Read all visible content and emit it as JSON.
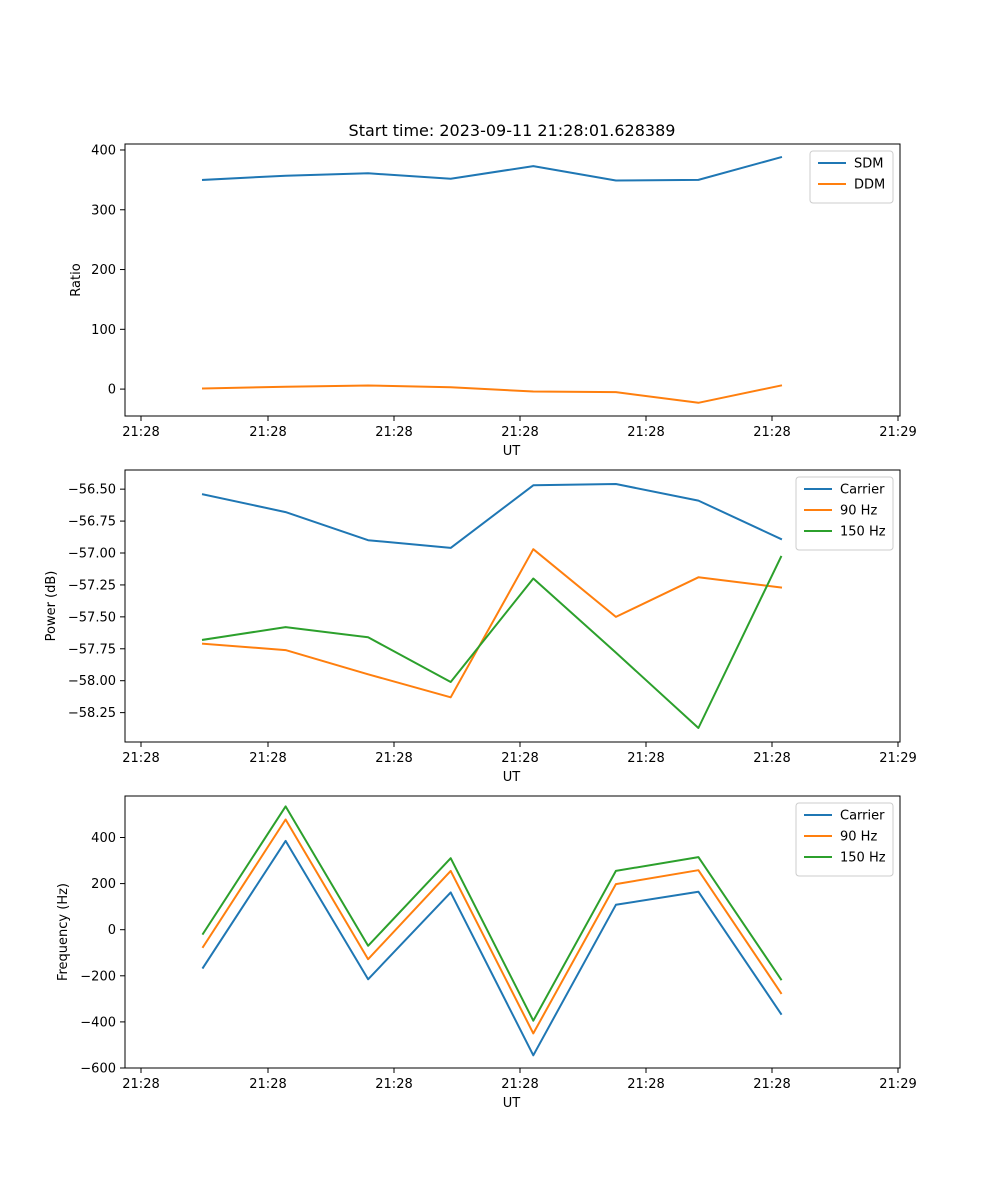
{
  "figure": {
    "title": "Start time: 2023-09-11 21:28:01.628389"
  },
  "chart_data": [
    {
      "type": "line",
      "xlabel": "UT",
      "ylabel": "Ratio",
      "x_tick_labels": [
        "21:28",
        "21:28",
        "21:28",
        "21:28",
        "21:28",
        "21:28",
        "21:29"
      ],
      "yticks": [
        0,
        100,
        200,
        300,
        400
      ],
      "ylim": [
        -45,
        410
      ],
      "x": [
        1,
        2,
        3,
        4,
        5,
        6,
        7,
        8
      ],
      "series": [
        {
          "name": "SDM",
          "color": "#1f77b4",
          "values": [
            350,
            357,
            361,
            352,
            373,
            349,
            350,
            388
          ]
        },
        {
          "name": "DDM",
          "color": "#ff7f0e",
          "values": [
            1,
            4,
            6,
            3,
            -4,
            -5,
            -23,
            6
          ]
        }
      ],
      "legend": "top-right",
      "grid": false
    },
    {
      "type": "line",
      "xlabel": "UT",
      "ylabel": "Power (dB)",
      "x_tick_labels": [
        "21:28",
        "21:28",
        "21:28",
        "21:28",
        "21:28",
        "21:28",
        "21:29"
      ],
      "yticks": [
        -58.25,
        -58.0,
        -57.75,
        -57.5,
        -57.25,
        -57.0,
        -56.75,
        -56.5
      ],
      "ytick_labels": [
        "−58.25",
        "−58.00",
        "−57.75",
        "−57.50",
        "−57.25",
        "−57.00",
        "−56.75",
        "−56.50"
      ],
      "ylim": [
        -58.48,
        -56.35
      ],
      "x": [
        1,
        2,
        3,
        4,
        5,
        6,
        7,
        8
      ],
      "series": [
        {
          "name": "Carrier",
          "color": "#1f77b4",
          "values": [
            -56.54,
            -56.68,
            -56.9,
            -56.96,
            -56.47,
            -56.46,
            -56.59,
            -56.89
          ]
        },
        {
          "name": "90 Hz",
          "color": "#ff7f0e",
          "values": [
            -57.71,
            -57.76,
            -57.95,
            -58.13,
            -56.97,
            -57.5,
            -57.19,
            -57.27
          ]
        },
        {
          "name": "150 Hz",
          "color": "#2ca02c",
          "values": [
            -57.68,
            -57.58,
            -57.66,
            -58.01,
            -57.2,
            -57.78,
            -58.37,
            -57.03
          ]
        }
      ],
      "legend": "top-right",
      "grid": false
    },
    {
      "type": "line",
      "xlabel": "UT",
      "ylabel": "Frequency (Hz)",
      "x_tick_labels": [
        "21:28",
        "21:28",
        "21:28",
        "21:28",
        "21:28",
        "21:28",
        "21:29"
      ],
      "yticks": [
        -600,
        -400,
        -200,
        0,
        200,
        400
      ],
      "ytick_labels": [
        "−600",
        "−400",
        "−200",
        "0",
        "200",
        "400"
      ],
      "ylim": [
        -600,
        580
      ],
      "x": [
        1,
        2,
        3,
        4,
        5,
        6,
        7,
        8
      ],
      "series": [
        {
          "name": "Carrier",
          "color": "#1f77b4",
          "values": [
            -165,
            385,
            -215,
            162,
            -545,
            108,
            165,
            -365
          ]
        },
        {
          "name": "90 Hz",
          "color": "#ff7f0e",
          "values": [
            -75,
            478,
            -128,
            255,
            -450,
            198,
            258,
            -275
          ]
        },
        {
          "name": "150 Hz",
          "color": "#2ca02c",
          "values": [
            -18,
            535,
            -70,
            310,
            -395,
            255,
            315,
            -215
          ]
        }
      ],
      "legend": "top-right",
      "grid": false
    }
  ]
}
